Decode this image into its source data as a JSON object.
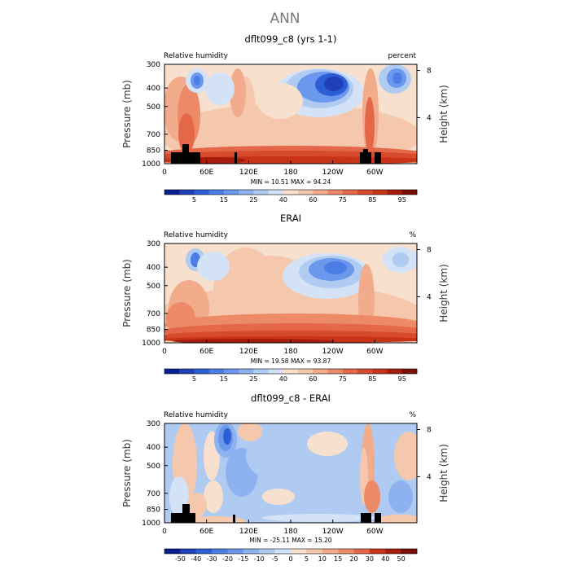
{
  "figure": {
    "title": "ANN"
  },
  "chart_data": [
    {
      "type": "heatmap",
      "title": "dflt099_c8 (yrs 1-1)",
      "left_label": "Relative humidity",
      "right_label": "percent",
      "ylabel": "Pressure (mb)",
      "y2label": "Height (km)",
      "x_ticks": [
        "0",
        "60E",
        "120E",
        "180",
        "120W",
        "60W"
      ],
      "y_ticks": [
        "300",
        "400",
        "500",
        "700",
        "850",
        "1000"
      ],
      "y2_ticks": [
        "8",
        "4"
      ],
      "stats": "MIN =   10.51   MAX =   94.24",
      "colorbar_labels": [
        "5",
        "15",
        "25",
        "40",
        "60",
        "75",
        "85",
        "95"
      ],
      "levels": [
        5,
        10,
        15,
        20,
        25,
        30,
        40,
        50,
        60,
        65,
        70,
        75,
        80,
        85,
        90,
        95
      ],
      "min": 10.51,
      "max": 94.24
    },
    {
      "type": "heatmap",
      "title": "ERAI",
      "left_label": "Relative humidity",
      "right_label": "%",
      "ylabel": "Pressure (mb)",
      "y2label": "Height (km)",
      "x_ticks": [
        "0",
        "60E",
        "120E",
        "180",
        "120W",
        "60W"
      ],
      "y_ticks": [
        "300",
        "400",
        "500",
        "700",
        "850",
        "1000"
      ],
      "y2_ticks": [
        "8",
        "4"
      ],
      "stats": "MIN =   19.58   MAX =   93.87",
      "colorbar_labels": [
        "5",
        "15",
        "25",
        "40",
        "60",
        "75",
        "85",
        "95"
      ],
      "levels": [
        5,
        10,
        15,
        20,
        25,
        30,
        40,
        50,
        60,
        65,
        70,
        75,
        80,
        85,
        90,
        95
      ],
      "min": 19.58,
      "max": 93.87
    },
    {
      "type": "heatmap",
      "title": "dflt099_c8 - ERAI",
      "left_label": "Relative humidity",
      "right_label": "%",
      "ylabel": "Pressure (mb)",
      "y2label": "Height (km)",
      "x_ticks": [
        "0",
        "60E",
        "120E",
        "180",
        "120W",
        "60W"
      ],
      "y_ticks": [
        "300",
        "400",
        "500",
        "700",
        "850",
        "1000"
      ],
      "y2_ticks": [
        "8",
        "4"
      ],
      "stats": "MIN =  -25.11   MAX =   15.20",
      "colorbar_labels": [
        "-50",
        "-40",
        "-30",
        "-20",
        "-15",
        "-10",
        "-5",
        "0",
        "5",
        "10",
        "15",
        "20",
        "30",
        "40",
        "50"
      ],
      "levels": [
        -50,
        -40,
        -30,
        -20,
        -15,
        -10,
        -5,
        0,
        5,
        10,
        15,
        20,
        30,
        40,
        50
      ],
      "min": -25.11,
      "max": 15.2
    }
  ],
  "colors": {
    "rh": [
      "#0a1f8f",
      "#1f40b8",
      "#2c5ed6",
      "#4a7de6",
      "#6b98ec",
      "#8db2ef",
      "#b0cbf2",
      "#d3e2f6",
      "#f8e0cf",
      "#f5c8ad",
      "#f2ac8c",
      "#ed8a68",
      "#e4674a",
      "#d84a2c",
      "#c93318",
      "#a51c0c",
      "#7a0d05"
    ],
    "diff": [
      "#0a1f8f",
      "#1f40b8",
      "#2c5ed6",
      "#4a7de6",
      "#6b98ec",
      "#8db2ef",
      "#b0cbf2",
      "#d3e2f6",
      "#f8e0cf",
      "#f5c8ad",
      "#f2ac8c",
      "#ed8a68",
      "#e4674a",
      "#c93318",
      "#a51c0c",
      "#7a0d05"
    ]
  }
}
